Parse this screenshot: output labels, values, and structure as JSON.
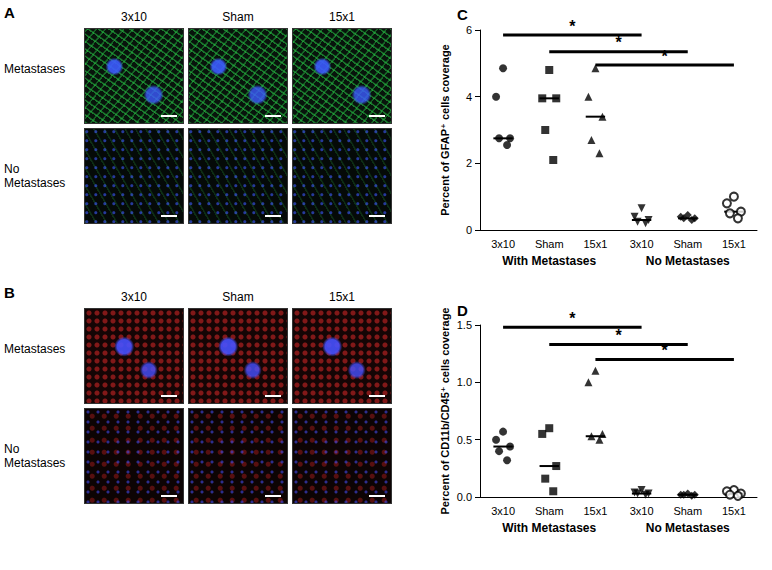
{
  "image_panels": [
    {
      "label": "A",
      "columns": [
        "3x10",
        "Sham",
        "15x1"
      ],
      "rows": [
        "Metastases",
        "No Metastases"
      ]
    },
    {
      "label": "B",
      "columns": [
        "3x10",
        "Sham",
        "15x1"
      ],
      "rows": [
        "Metastases",
        "No Metastases"
      ]
    }
  ],
  "chart_data": [
    {
      "type": "scatter",
      "panel": "C",
      "y_label": "Percent of GFAP⁺ cells coverage",
      "categories": [
        "3x10",
        "Sham",
        "15x1",
        "3x10",
        "Sham",
        "15x1"
      ],
      "groups": [
        "With Metastases",
        "No Metastases"
      ],
      "values": [
        [
          4.85,
          4.0,
          2.75,
          2.75,
          2.55
        ],
        [
          4.8,
          3.95,
          3.95,
          3.0,
          2.1
        ],
        [
          4.85,
          4.0,
          3.4,
          2.7,
          2.3
        ],
        [
          0.65,
          0.4,
          0.3,
          0.25,
          0.2
        ],
        [
          0.45,
          0.4,
          0.35,
          0.35,
          0.3
        ],
        [
          1.0,
          0.8,
          0.55,
          0.5,
          0.35
        ]
      ],
      "medians": [
        2.75,
        3.95,
        3.4,
        0.3,
        0.35,
        0.55
      ],
      "marker": [
        "circle",
        "square",
        "triangle",
        "triangle_down",
        "diamond",
        "open_circle"
      ],
      "color": "#000000",
      "significance": [
        {
          "from": 0,
          "to": 3,
          "y": 5.85,
          "label": "*"
        },
        {
          "from": 1,
          "to": 4,
          "y": 5.35,
          "label": "*"
        },
        {
          "from": 2,
          "to": 5,
          "y": 4.95,
          "label": "*"
        }
      ],
      "ylim": [
        0,
        6
      ],
      "yticks": [
        0,
        2,
        4,
        6
      ],
      "grid": false
    },
    {
      "type": "scatter",
      "panel": "D",
      "y_label": "Percent of CD11b/CD45⁺ cells coverage",
      "categories": [
        "3x10",
        "Sham",
        "15x1",
        "3x10",
        "Sham",
        "15x1"
      ],
      "groups": [
        "With Metastases",
        "No Metastases"
      ],
      "values": [
        [
          0.57,
          0.5,
          0.44,
          0.4,
          0.32
        ],
        [
          0.6,
          0.55,
          0.27,
          0.16,
          0.05
        ],
        [
          1.1,
          1.0,
          0.55,
          0.53,
          0.5
        ],
        [
          0.06,
          0.04,
          0.03,
          0.03,
          0.02
        ],
        [
          0.03,
          0.02,
          0.02,
          0.02,
          0.01
        ],
        [
          0.06,
          0.05,
          0.03,
          0.02,
          0.01
        ]
      ],
      "medians": [
        0.44,
        0.27,
        0.53,
        0.03,
        0.02,
        0.03
      ],
      "marker": [
        "circle",
        "square",
        "triangle",
        "triangle_down",
        "diamond",
        "open_circle"
      ],
      "color": "#000000",
      "significance": [
        {
          "from": 0,
          "to": 3,
          "y": 1.48,
          "label": "*"
        },
        {
          "from": 1,
          "to": 4,
          "y": 1.33,
          "label": "*"
        },
        {
          "from": 2,
          "to": 5,
          "y": 1.2,
          "label": "*"
        }
      ],
      "ylim": [
        0,
        1.5
      ],
      "yticks": [
        {
          "value": 0,
          "label": "0.0"
        },
        {
          "value": 0.5,
          "label": "0.5"
        },
        {
          "value": 1.0,
          "label": "1.0"
        },
        {
          "value": 1.5,
          "label": "1.5"
        }
      ],
      "grid": false
    }
  ]
}
